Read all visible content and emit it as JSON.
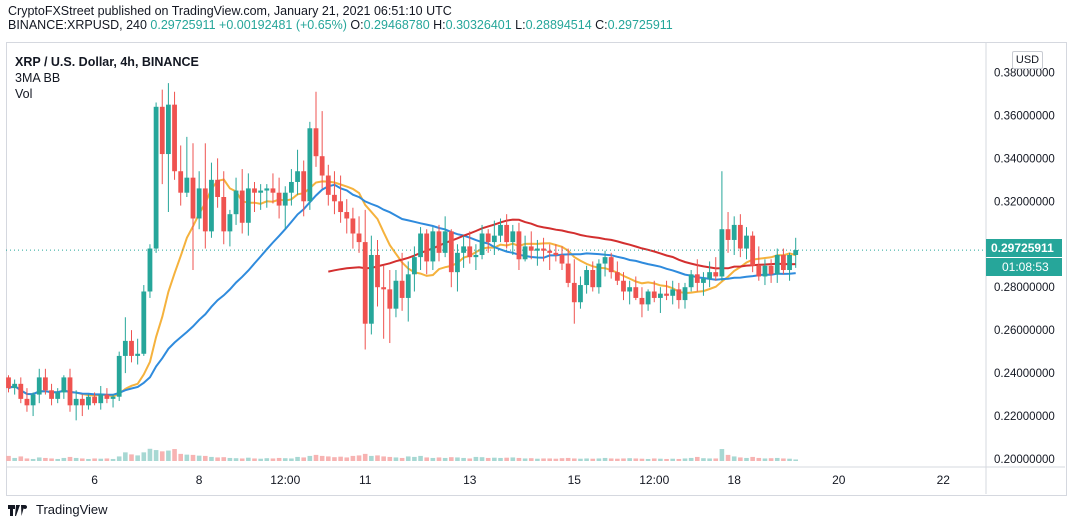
{
  "header": {
    "publisher": "CryptoFXStreet published on TradingView.com, January 21, 2021 06:51:10 UTC",
    "symbol_line": "BINANCE:XRPUSD, 240",
    "last": "0.29725911",
    "change": "+0.00192481 (+0.65%)",
    "o_label": "O:",
    "o_value": "0.29468780",
    "h_label": "H:",
    "h_value": "0.30326401",
    "l_label": "L:",
    "l_value": "0.28894514",
    "c_label": "C:",
    "c_value": "0.29725911"
  },
  "legend": {
    "symbol": "XRP / U.S. Dollar, 4h, BINANCE",
    "indicator1": "3MA BB",
    "indicator2": "Vol"
  },
  "price_axis": {
    "currency": "USD",
    "current_price_label": "0.29725911",
    "countdown": "01:08:53"
  },
  "brand": {
    "name": "TradingView"
  },
  "colors": {
    "up": "#26a69a",
    "down": "#ef5350",
    "vol_up": "#a7d8d3",
    "vol_down": "#f7b3b2",
    "ma_red": "#d32f2f",
    "ma_orange": "#f5b23d",
    "ma_blue": "#2f8bdd",
    "last_price": "#26a69a"
  },
  "chart_data": {
    "type": "candlestick",
    "y_ticks": [
      "0.36000000",
      "0.34000000",
      "0.32000000",
      "0.28000000",
      "0.26000000",
      "0.24000000",
      "0.22000000",
      "0.20000000"
    ],
    "y_top_partial": "0.38000000",
    "ylim": [
      0.2,
      0.383
    ],
    "x_ticks": [
      {
        "label": "6",
        "bar": 14
      },
      {
        "label": "8",
        "bar": 31
      },
      {
        "label": "12:00",
        "bar": 45
      },
      {
        "label": "11",
        "bar": 58
      },
      {
        "label": "13",
        "bar": 75
      },
      {
        "label": "15",
        "bar": 92
      },
      {
        "label": "12:00",
        "bar": 105
      },
      {
        "label": "18",
        "bar": 118
      },
      {
        "label": "20",
        "bar": 135
      },
      {
        "label": "22",
        "bar": 152
      }
    ],
    "last_price": 0.29725911,
    "volume_max": 0.224,
    "candles": [
      [
        0.238,
        0.239,
        0.231,
        0.233,
        0.02
      ],
      [
        0.233,
        0.237,
        0.23,
        0.235,
        0.012
      ],
      [
        0.235,
        0.238,
        0.226,
        0.228,
        0.018
      ],
      [
        0.228,
        0.233,
        0.222,
        0.225,
        0.01
      ],
      [
        0.225,
        0.231,
        0.22,
        0.23,
        0.008
      ],
      [
        0.23,
        0.242,
        0.226,
        0.238,
        0.014
      ],
      [
        0.238,
        0.242,
        0.23,
        0.232,
        0.012
      ],
      [
        0.232,
        0.235,
        0.225,
        0.228,
        0.01
      ],
      [
        0.228,
        0.233,
        0.226,
        0.231,
        0.008
      ],
      [
        0.231,
        0.239,
        0.228,
        0.238,
        0.012
      ],
      [
        0.238,
        0.242,
        0.222,
        0.225,
        0.016
      ],
      [
        0.225,
        0.232,
        0.218,
        0.228,
        0.012
      ],
      [
        0.228,
        0.23,
        0.22,
        0.225,
        0.01
      ],
      [
        0.225,
        0.23,
        0.223,
        0.229,
        0.008
      ],
      [
        0.229,
        0.231,
        0.225,
        0.226,
        0.01
      ],
      [
        0.226,
        0.234,
        0.223,
        0.23,
        0.009
      ],
      [
        0.23,
        0.233,
        0.226,
        0.228,
        0.01
      ],
      [
        0.228,
        0.23,
        0.224,
        0.229,
        0.008
      ],
      [
        0.229,
        0.25,
        0.227,
        0.248,
        0.018
      ],
      [
        0.248,
        0.266,
        0.24,
        0.255,
        0.034
      ],
      [
        0.255,
        0.26,
        0.245,
        0.248,
        0.026
      ],
      [
        0.248,
        0.256,
        0.244,
        0.249,
        0.022
      ],
      [
        0.249,
        0.281,
        0.248,
        0.278,
        0.034
      ],
      [
        0.278,
        0.3,
        0.275,
        0.298,
        0.048
      ],
      [
        0.298,
        0.366,
        0.296,
        0.364,
        0.043
      ],
      [
        0.364,
        0.372,
        0.328,
        0.342,
        0.038
      ],
      [
        0.342,
        0.375,
        0.315,
        0.365,
        0.041
      ],
      [
        0.365,
        0.371,
        0.33,
        0.334,
        0.047
      ],
      [
        0.334,
        0.346,
        0.318,
        0.324,
        0.028
      ],
      [
        0.324,
        0.35,
        0.322,
        0.331,
        0.025
      ],
      [
        0.331,
        0.347,
        0.288,
        0.312,
        0.024
      ],
      [
        0.312,
        0.334,
        0.307,
        0.326,
        0.021
      ],
      [
        0.326,
        0.347,
        0.298,
        0.306,
        0.02
      ],
      [
        0.306,
        0.338,
        0.303,
        0.33,
        0.016
      ],
      [
        0.33,
        0.34,
        0.317,
        0.322,
        0.014
      ],
      [
        0.322,
        0.334,
        0.3,
        0.306,
        0.015
      ],
      [
        0.306,
        0.316,
        0.299,
        0.314,
        0.012
      ],
      [
        0.314,
        0.331,
        0.309,
        0.325,
        0.011
      ],
      [
        0.325,
        0.335,
        0.305,
        0.31,
        0.01
      ],
      [
        0.31,
        0.333,
        0.304,
        0.326,
        0.013
      ],
      [
        0.326,
        0.329,
        0.315,
        0.324,
        0.01
      ],
      [
        0.324,
        0.328,
        0.316,
        0.325,
        0.009
      ],
      [
        0.325,
        0.328,
        0.317,
        0.326,
        0.011
      ],
      [
        0.326,
        0.333,
        0.319,
        0.324,
        0.01
      ],
      [
        0.324,
        0.331,
        0.312,
        0.318,
        0.012
      ],
      [
        0.318,
        0.327,
        0.307,
        0.324,
        0.011
      ],
      [
        0.324,
        0.335,
        0.318,
        0.329,
        0.01
      ],
      [
        0.329,
        0.344,
        0.323,
        0.334,
        0.016
      ],
      [
        0.334,
        0.339,
        0.313,
        0.32,
        0.014
      ],
      [
        0.32,
        0.357,
        0.316,
        0.354,
        0.02
      ],
      [
        0.354,
        0.371,
        0.336,
        0.341,
        0.024
      ],
      [
        0.341,
        0.362,
        0.326,
        0.332,
        0.02
      ],
      [
        0.332,
        0.337,
        0.318,
        0.323,
        0.018
      ],
      [
        0.323,
        0.334,
        0.314,
        0.32,
        0.015
      ],
      [
        0.32,
        0.332,
        0.31,
        0.315,
        0.017
      ],
      [
        0.315,
        0.321,
        0.305,
        0.312,
        0.014
      ],
      [
        0.312,
        0.317,
        0.298,
        0.305,
        0.02
      ],
      [
        0.305,
        0.313,
        0.296,
        0.301,
        0.022
      ],
      [
        0.301,
        0.316,
        0.251,
        0.263,
        0.028
      ],
      [
        0.263,
        0.304,
        0.258,
        0.295,
        0.02
      ],
      [
        0.295,
        0.302,
        0.271,
        0.28,
        0.022
      ],
      [
        0.28,
        0.29,
        0.256,
        0.279,
        0.018
      ],
      [
        0.279,
        0.288,
        0.254,
        0.27,
        0.016
      ],
      [
        0.27,
        0.288,
        0.266,
        0.283,
        0.014
      ],
      [
        0.283,
        0.296,
        0.269,
        0.275,
        0.012
      ],
      [
        0.275,
        0.292,
        0.264,
        0.286,
        0.018
      ],
      [
        0.286,
        0.299,
        0.278,
        0.294,
        0.016
      ],
      [
        0.294,
        0.308,
        0.288,
        0.305,
        0.02
      ],
      [
        0.305,
        0.307,
        0.286,
        0.292,
        0.014
      ],
      [
        0.292,
        0.308,
        0.288,
        0.306,
        0.012
      ],
      [
        0.306,
        0.309,
        0.292,
        0.296,
        0.014
      ],
      [
        0.296,
        0.313,
        0.294,
        0.306,
        0.012
      ],
      [
        0.306,
        0.307,
        0.28,
        0.287,
        0.015
      ],
      [
        0.287,
        0.3,
        0.278,
        0.296,
        0.014
      ],
      [
        0.296,
        0.304,
        0.289,
        0.299,
        0.012
      ],
      [
        0.299,
        0.306,
        0.291,
        0.294,
        0.01
      ],
      [
        0.294,
        0.3,
        0.288,
        0.295,
        0.016
      ],
      [
        0.295,
        0.309,
        0.293,
        0.305,
        0.015
      ],
      [
        0.305,
        0.307,
        0.296,
        0.301,
        0.012
      ],
      [
        0.301,
        0.311,
        0.295,
        0.304,
        0.013
      ],
      [
        0.304,
        0.312,
        0.301,
        0.309,
        0.012
      ],
      [
        0.309,
        0.314,
        0.298,
        0.301,
        0.013
      ],
      [
        0.301,
        0.309,
        0.295,
        0.306,
        0.014
      ],
      [
        0.306,
        0.31,
        0.288,
        0.293,
        0.012
      ],
      [
        0.293,
        0.304,
        0.292,
        0.299,
        0.01
      ],
      [
        0.299,
        0.306,
        0.293,
        0.297,
        0.011
      ],
      [
        0.297,
        0.302,
        0.29,
        0.298,
        0.009
      ],
      [
        0.298,
        0.303,
        0.292,
        0.297,
        0.01
      ],
      [
        0.297,
        0.3,
        0.288,
        0.296,
        0.01
      ],
      [
        0.296,
        0.3,
        0.292,
        0.295,
        0.009
      ],
      [
        0.295,
        0.299,
        0.288,
        0.291,
        0.011
      ],
      [
        0.291,
        0.298,
        0.28,
        0.282,
        0.012
      ],
      [
        0.282,
        0.293,
        0.263,
        0.273,
        0.01
      ],
      [
        0.273,
        0.285,
        0.27,
        0.281,
        0.009
      ],
      [
        0.281,
        0.29,
        0.277,
        0.288,
        0.01
      ],
      [
        0.288,
        0.292,
        0.278,
        0.28,
        0.009
      ],
      [
        0.28,
        0.293,
        0.277,
        0.291,
        0.01
      ],
      [
        0.291,
        0.297,
        0.285,
        0.294,
        0.012
      ],
      [
        0.294,
        0.296,
        0.284,
        0.287,
        0.01
      ],
      [
        0.287,
        0.292,
        0.281,
        0.283,
        0.009
      ],
      [
        0.283,
        0.287,
        0.274,
        0.278,
        0.01
      ],
      [
        0.278,
        0.283,
        0.272,
        0.28,
        0.011
      ],
      [
        0.28,
        0.285,
        0.274,
        0.275,
        0.01
      ],
      [
        0.275,
        0.28,
        0.266,
        0.272,
        0.009
      ],
      [
        0.272,
        0.279,
        0.269,
        0.278,
        0.008
      ],
      [
        0.278,
        0.283,
        0.273,
        0.275,
        0.01
      ],
      [
        0.275,
        0.28,
        0.268,
        0.277,
        0.009
      ],
      [
        0.277,
        0.283,
        0.274,
        0.276,
        0.008
      ],
      [
        0.276,
        0.283,
        0.272,
        0.279,
        0.009
      ],
      [
        0.279,
        0.282,
        0.27,
        0.274,
        0.008
      ],
      [
        0.274,
        0.282,
        0.27,
        0.28,
        0.01
      ],
      [
        0.28,
        0.288,
        0.278,
        0.286,
        0.012
      ],
      [
        0.286,
        0.293,
        0.278,
        0.282,
        0.016
      ],
      [
        0.282,
        0.287,
        0.276,
        0.284,
        0.011
      ],
      [
        0.284,
        0.292,
        0.28,
        0.287,
        0.01
      ],
      [
        0.287,
        0.294,
        0.283,
        0.285,
        0.01
      ],
      [
        0.285,
        0.334,
        0.283,
        0.307,
        0.047
      ],
      [
        0.307,
        0.315,
        0.296,
        0.302,
        0.024
      ],
      [
        0.302,
        0.313,
        0.295,
        0.309,
        0.018
      ],
      [
        0.309,
        0.314,
        0.294,
        0.298,
        0.014
      ],
      [
        0.298,
        0.308,
        0.293,
        0.304,
        0.012
      ],
      [
        0.304,
        0.306,
        0.287,
        0.29,
        0.016
      ],
      [
        0.29,
        0.299,
        0.283,
        0.285,
        0.012
      ],
      [
        0.285,
        0.293,
        0.281,
        0.29,
        0.01
      ],
      [
        0.29,
        0.293,
        0.282,
        0.286,
        0.011
      ],
      [
        0.286,
        0.298,
        0.282,
        0.295,
        0.012
      ],
      [
        0.295,
        0.298,
        0.286,
        0.288,
        0.01
      ],
      [
        0.288,
        0.296,
        0.283,
        0.295,
        0.009
      ],
      [
        0.295,
        0.303,
        0.289,
        0.2973,
        0.006
      ]
    ]
  }
}
